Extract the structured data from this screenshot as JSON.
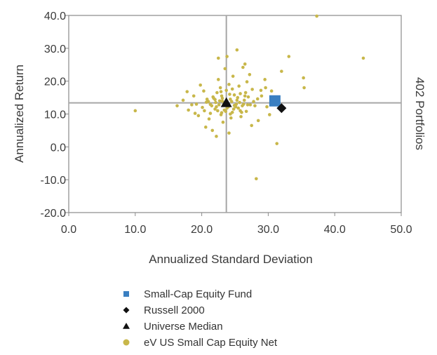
{
  "chart_data": {
    "type": "scatter",
    "xlabel": "Annualized Standard Deviation",
    "ylabel": "Annualized Return",
    "right_label": "402 Portfolios",
    "xlim": [
      0,
      50
    ],
    "ylim": [
      -20,
      40
    ],
    "x_ticks": [
      "0.0",
      "10.0",
      "20.0",
      "30.0",
      "40.0",
      "50.0"
    ],
    "y_ticks": [
      "-20.0",
      "-10.0",
      "0.0",
      "10.0",
      "20.0",
      "30.0",
      "40.0"
    ],
    "crosshair": {
      "x": 23.7,
      "y": 13.4
    },
    "legend_position": "bottom",
    "series": [
      {
        "name": "Small-Cap Equity Fund",
        "marker": "square",
        "color": "#3a7fc1",
        "size": 16,
        "points": [
          [
            31.0,
            14.0
          ]
        ]
      },
      {
        "name": "Russell 2000",
        "marker": "diamond",
        "color": "#111111",
        "size": 7,
        "points": [
          [
            32.0,
            11.8
          ]
        ]
      },
      {
        "name": "Universe Median",
        "marker": "triangle",
        "color": "#111111",
        "size": 8,
        "points": [
          [
            23.7,
            13.4
          ]
        ]
      },
      {
        "name": "eV US Small Cap Equity Net",
        "marker": "circle",
        "color": "#c8b74a",
        "size": 2.3,
        "points": [
          [
            10.0,
            11.0
          ],
          [
            44.3,
            27.0
          ],
          [
            37.3,
            39.8
          ],
          [
            35.3,
            21.0
          ],
          [
            35.4,
            18.0
          ],
          [
            33.1,
            27.5
          ],
          [
            32.0,
            23.0
          ],
          [
            31.3,
            1.0
          ],
          [
            28.2,
            -9.7
          ],
          [
            22.2,
            3.2
          ],
          [
            22.5,
            27.0
          ],
          [
            25.3,
            29.5
          ],
          [
            23.8,
            27.5
          ],
          [
            26.5,
            25.2
          ],
          [
            29.5,
            20.5
          ],
          [
            30.5,
            17.0
          ],
          [
            29.0,
            15.5
          ],
          [
            28.0,
            12.5
          ],
          [
            28.5,
            8.0
          ],
          [
            16.3,
            12.5
          ],
          [
            17.2,
            14.2
          ],
          [
            18.0,
            11.2
          ],
          [
            18.8,
            15.5
          ],
          [
            19.5,
            9.5
          ],
          [
            20.3,
            17.0
          ],
          [
            20.6,
            6.0
          ],
          [
            21.0,
            13.8
          ],
          [
            21.3,
            10.2
          ],
          [
            21.7,
            15.2
          ],
          [
            22.0,
            11.5
          ],
          [
            22.3,
            16.5
          ],
          [
            22.6,
            12.8
          ],
          [
            22.9,
            9.8
          ],
          [
            23.1,
            14.8
          ],
          [
            23.4,
            11.2
          ],
          [
            23.7,
            17.2
          ],
          [
            24.0,
            12.2
          ],
          [
            24.3,
            14.5
          ],
          [
            24.6,
            10.5
          ],
          [
            24.9,
            15.8
          ],
          [
            25.2,
            13.0
          ],
          [
            25.5,
            11.8
          ],
          [
            25.8,
            16.2
          ],
          [
            26.1,
            12.5
          ],
          [
            26.4,
            14.2
          ],
          [
            26.7,
            10.8
          ],
          [
            27.0,
            15.2
          ],
          [
            27.3,
            12.8
          ],
          [
            27.6,
            17.5
          ],
          [
            21.5,
            12.5
          ],
          [
            22.1,
            13.5
          ],
          [
            22.7,
            14.0
          ],
          [
            23.3,
            12.8
          ],
          [
            23.9,
            13.2
          ],
          [
            24.5,
            13.8
          ],
          [
            25.1,
            12.2
          ],
          [
            25.7,
            13.5
          ],
          [
            26.3,
            13.0
          ],
          [
            26.9,
            12.8
          ],
          [
            22.4,
            11.0
          ],
          [
            23.0,
            15.5
          ],
          [
            23.6,
            10.8
          ],
          [
            24.2,
            16.0
          ],
          [
            24.8,
            11.5
          ],
          [
            25.4,
            15.0
          ],
          [
            26.0,
            10.5
          ],
          [
            26.6,
            16.5
          ],
          [
            21.8,
            14.8
          ],
          [
            22.8,
            18.0
          ],
          [
            24.1,
            19.0
          ],
          [
            25.6,
            18.5
          ],
          [
            20.1,
            12.0
          ],
          [
            20.8,
            14.5
          ],
          [
            19.2,
            13.0
          ],
          [
            18.5,
            12.8
          ],
          [
            27.8,
            13.8
          ],
          [
            28.4,
            14.6
          ],
          [
            24.4,
            8.8
          ],
          [
            23.2,
            7.5
          ],
          [
            25.9,
            9.2
          ],
          [
            21.1,
            8.5
          ],
          [
            26.8,
            19.8
          ],
          [
            22.5,
            20.5
          ],
          [
            24.7,
            21.5
          ],
          [
            27.2,
            22.0
          ],
          [
            19.8,
            18.8
          ],
          [
            17.8,
            16.8
          ],
          [
            23.5,
            23.8
          ],
          [
            26.2,
            24.2
          ],
          [
            21.6,
            5.0
          ],
          [
            24.1,
            4.2
          ],
          [
            27.5,
            6.5
          ],
          [
            29.8,
            12.2
          ],
          [
            30.2,
            9.8
          ],
          [
            19.0,
            10.2
          ],
          [
            20.4,
            11.0
          ],
          [
            22.2,
            12.2
          ],
          [
            23.8,
            11.8
          ],
          [
            25.3,
            14.2
          ],
          [
            26.5,
            15.5
          ],
          [
            24.9,
            12.6
          ],
          [
            23.1,
            13.9
          ],
          [
            22.0,
            14.4
          ],
          [
            21.3,
            12.9
          ],
          [
            20.7,
            13.6
          ],
          [
            28.9,
            17.2
          ],
          [
            29.6,
            18.0
          ],
          [
            24.6,
            17.6
          ],
          [
            22.9,
            16.8
          ],
          [
            25.8,
            11.0
          ],
          [
            24.3,
            10.0
          ],
          [
            23.0,
            10.4
          ]
        ]
      }
    ]
  }
}
